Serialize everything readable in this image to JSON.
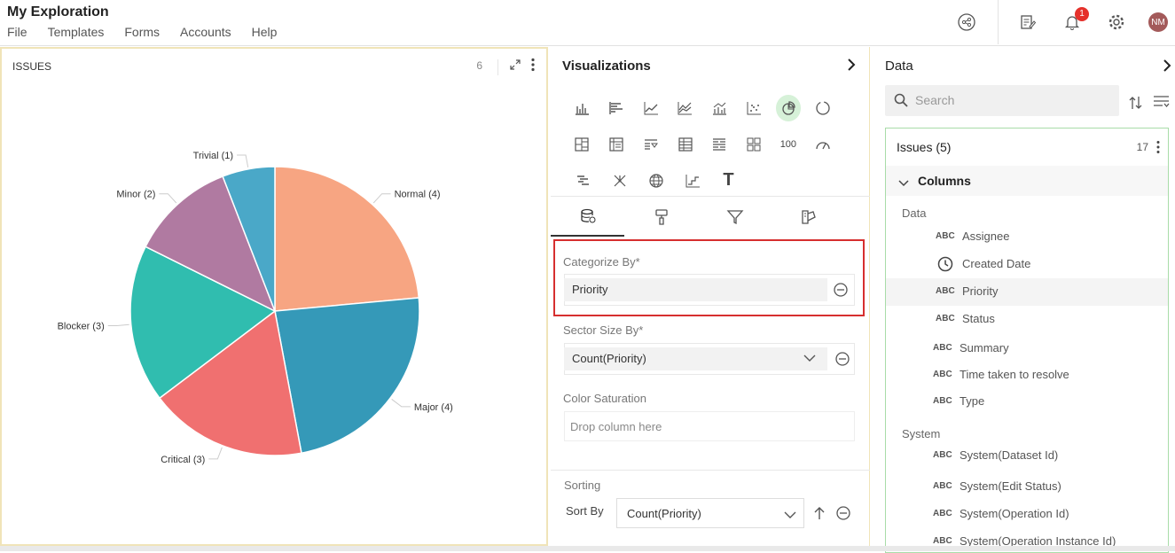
{
  "app": {
    "title": "My Exploration",
    "menu": [
      "File",
      "Templates",
      "Forms",
      "Accounts",
      "Help"
    ],
    "notification_count": "1",
    "avatar_initials": "NM"
  },
  "chart_panel": {
    "title": "ISSUES",
    "count": "6"
  },
  "chart_data": {
    "type": "pie",
    "categories": [
      "Normal",
      "Major",
      "Critical",
      "Blocker",
      "Minor",
      "Trivial"
    ],
    "values": [
      4,
      4,
      3,
      3,
      2,
      1
    ],
    "labels": [
      "Normal (4)",
      "Major (4)",
      "Critical (3)",
      "Blocker (3)",
      "Minor (2)",
      "Trivial (1)"
    ],
    "colors": [
      "#f7a582",
      "#3599b8",
      "#f07070",
      "#30bdaf",
      "#b07aa1",
      "#4aa8c8"
    ]
  },
  "viz_panel": {
    "title": "Visualizations",
    "categorize_label": "Categorize By*",
    "categorize_value": "Priority",
    "sector_label": "Sector Size By*",
    "sector_value": "Count(Priority)",
    "saturation_label": "Color Saturation",
    "saturation_placeholder": "Drop column here",
    "sorting_label": "Sorting",
    "sort_by_label": "Sort By",
    "sort_by_value": "Count(Priority)",
    "kpi_label": "100",
    "text_label": "T"
  },
  "data_panel": {
    "title": "Data",
    "search_placeholder": "Search",
    "dataset_name": "Issues (5)",
    "dataset_count": "17",
    "columns_label": "Columns",
    "group_data": "Data",
    "group_system": "System",
    "data_columns": [
      {
        "type": "ABC",
        "name": "Assignee"
      },
      {
        "type": "clock",
        "name": "Created Date"
      },
      {
        "type": "ABC",
        "name": "Priority"
      },
      {
        "type": "ABC",
        "name": "Status"
      },
      {
        "type": "ABC",
        "name": "Summary"
      },
      {
        "type": "ABC",
        "name": "Time taken to resolve"
      },
      {
        "type": "ABC",
        "name": "Type"
      }
    ],
    "system_columns": [
      {
        "type": "ABC",
        "name": "System(Dataset Id)"
      },
      {
        "type": "ABC",
        "name": "System(Edit Status)"
      },
      {
        "type": "ABC",
        "name": "System(Operation Id)"
      },
      {
        "type": "ABC",
        "name": "System(Operation Instance Id)"
      }
    ]
  }
}
